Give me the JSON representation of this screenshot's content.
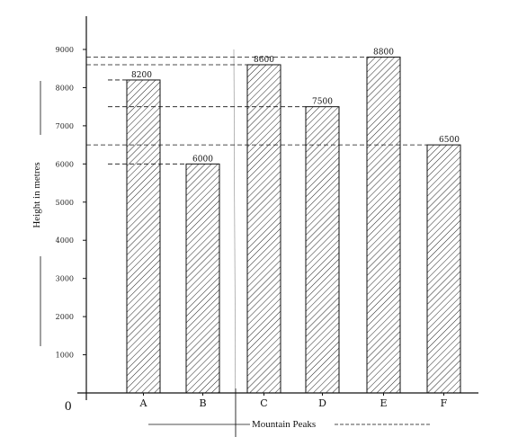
{
  "chart_data": {
    "type": "bar",
    "categories": [
      "A",
      "B",
      "C",
      "D",
      "E",
      "F"
    ],
    "values": [
      8200,
      6000,
      8600,
      7500,
      8800,
      6500
    ],
    "value_labels": [
      "8200",
      "6000",
      "8600",
      "7500",
      "8800",
      "6500"
    ],
    "xlabel": "Mountain Peaks",
    "ylabel": "Height in metres",
    "origin_label": "0",
    "ylim": [
      0,
      9000
    ],
    "yticks": [
      1000,
      2000,
      3000,
      4000,
      5000,
      6000,
      7000,
      8000,
      9000
    ],
    "ytick_labels": [
      "1000",
      "2000",
      "3000",
      "4000",
      "5000",
      "6000",
      "7000",
      "8000",
      "9000"
    ],
    "bar_fill": "diagonal-hatch",
    "reference_lines": "dashed lines from y-axis to each bar top",
    "grid": false,
    "legend": "none",
    "colors": {
      "ink": "#111111",
      "background": "#ffffff"
    }
  }
}
